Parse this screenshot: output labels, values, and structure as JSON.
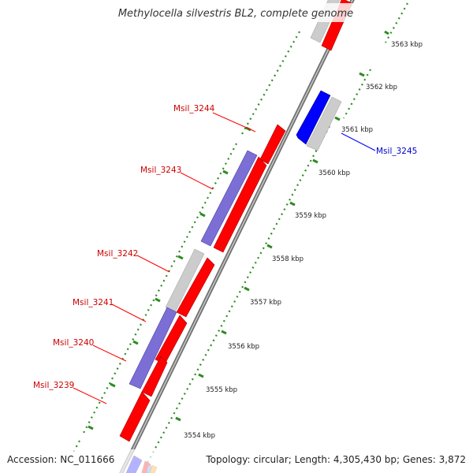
{
  "title": "Methylocella silvestris BL2, complete genome",
  "footer": {
    "accession": "Accession: NC_011666",
    "stats": "Topology: circular; Length: 4,305,430 bp; Genes: 3,872"
  },
  "colors": {
    "background": "#ffffff",
    "forward_gene": "#ff0000",
    "reverse_gene": "#0000ff",
    "cds_purple": "#7b6fd6",
    "grey_feature": "#cccccc",
    "tick_green": "#2e8b22",
    "backbone": "#8a8a8a",
    "label_red": "#cc0000",
    "label_blue": "#0000cc"
  },
  "kbp_ticks": [
    "3563 kbp",
    "3562 kbp",
    "3561 kbp",
    "3560 kbp",
    "3559 kbp",
    "3558 kbp",
    "3557 kbp",
    "3556 kbp",
    "3555 kbp",
    "3554 kbp"
  ],
  "gene_labels": [
    {
      "text": "Msil_3244",
      "strand": "forward"
    },
    {
      "text": "Msil_3243",
      "strand": "forward"
    },
    {
      "text": "Msil_3242",
      "strand": "forward"
    },
    {
      "text": "Msil_3241",
      "strand": "forward"
    },
    {
      "text": "Msil_3240",
      "strand": "forward"
    },
    {
      "text": "Msil_3239",
      "strand": "forward"
    },
    {
      "text": "Msil_3245",
      "strand": "reverse"
    }
  ]
}
